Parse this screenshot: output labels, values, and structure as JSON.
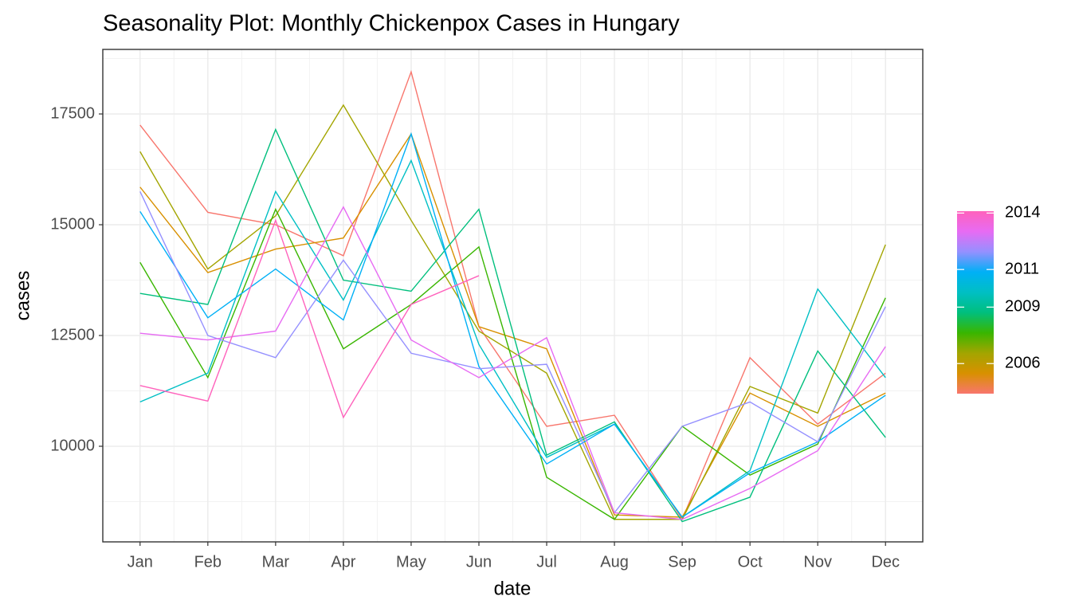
{
  "chart_data": {
    "type": "line",
    "title": "Seasonality Plot: Monthly Chickenpox Cases in Hungary",
    "x_label": "date",
    "y_label": "cases",
    "categories": [
      "Jan",
      "Feb",
      "Mar",
      "Apr",
      "May",
      "Jun",
      "Jul",
      "Aug",
      "Sep",
      "Oct",
      "Nov",
      "Dec"
    ],
    "ylim": [
      7842,
      18957
    ],
    "yticks": [
      10000,
      12500,
      15000,
      17500
    ],
    "grid": true,
    "series": [
      {
        "color": "#F8766D",
        "values": [
          17250,
          15280,
          15000,
          14300,
          18450,
          12700,
          10450,
          10700,
          8350,
          12000,
          10500,
          11650
        ]
      },
      {
        "color": "#D89000",
        "values": [
          15850,
          13920,
          14450,
          14700,
          17050,
          12700,
          12200,
          8450,
          8400,
          11200,
          10450,
          11200
        ]
      },
      {
        "color": "#A3A500",
        "values": [
          16650,
          14000,
          15200,
          17700,
          15100,
          12600,
          11650,
          8350,
          8350,
          11350,
          10750,
          14550
        ]
      },
      {
        "color": "#39B600",
        "values": [
          14150,
          11550,
          15350,
          12200,
          13200,
          14500,
          9300,
          8350,
          10450,
          9350,
          10050,
          13350
        ]
      },
      {
        "color": "#00BF7D",
        "values": [
          13450,
          13200,
          17150,
          13750,
          13500,
          15350,
          9800,
          10550,
          8300,
          8850,
          12150,
          10200
        ]
      },
      {
        "color": "#00BFC4",
        "values": [
          11000,
          11650,
          15750,
          13300,
          16450,
          12300,
          9750,
          10500,
          8400,
          9450,
          13550,
          11550
        ]
      },
      {
        "color": "#00B0F6",
        "values": [
          15300,
          12900,
          14000,
          12850,
          17050,
          11800,
          9600,
          10500,
          8400,
          9400,
          10100,
          11150
        ]
      },
      {
        "color": "#9590FF",
        "values": [
          15750,
          12500,
          12000,
          14200,
          12100,
          11750,
          11850,
          8500,
          10450,
          11000,
          10100,
          13150
        ]
      },
      {
        "color": "#E76BF3",
        "values": [
          12550,
          12400,
          12600,
          15400,
          12400,
          11550,
          12450,
          8500,
          8350,
          9050,
          9900,
          12250
        ]
      },
      {
        "color": "#FF62BC",
        "values": [
          11370,
          11020,
          15100,
          10650,
          13200,
          13850,
          null,
          null,
          null,
          null,
          null,
          null
        ]
      }
    ],
    "colorbar": {
      "lim": [
        2004.4,
        2014.1
      ],
      "ticks": [
        2006,
        2009,
        2011,
        2014
      ],
      "colors": [
        "#F8766D",
        "#D89000",
        "#A3A500",
        "#39B600",
        "#00BF7D",
        "#00BFC4",
        "#00B0F6",
        "#9590FF",
        "#E76BF3",
        "#FF62BC"
      ]
    }
  }
}
